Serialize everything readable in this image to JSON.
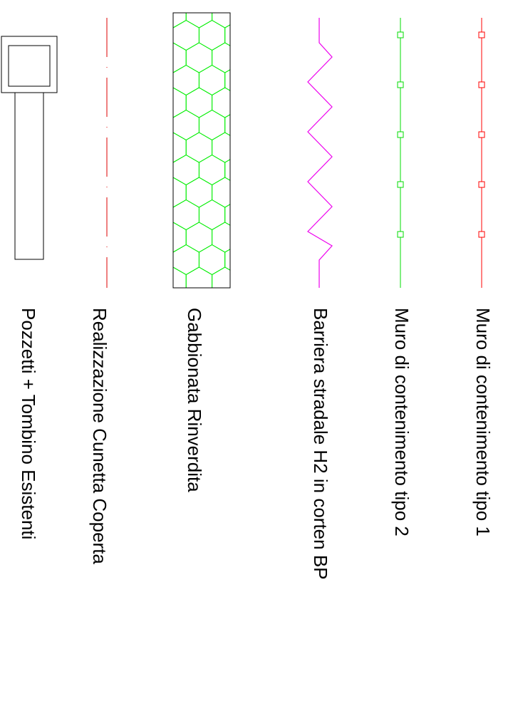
{
  "legend": {
    "items": [
      {
        "key": "muro_tipo_1",
        "label": "Muro di contenimento tipo 1",
        "symbol": "line-with-square-markers",
        "color": "#ff0000"
      },
      {
        "key": "muro_tipo_2",
        "label": "Muro di contenimento tipo 2",
        "symbol": "line-with-square-markers",
        "color": "#00dd00"
      },
      {
        "key": "barriera",
        "label": "Barriera stradale  H2 in corten BP",
        "symbol": "zigzag-line",
        "color": "#ee00ee"
      },
      {
        "key": "gabbionata",
        "label": "Gabbionata Rinverdita",
        "symbol": "hexagon-hatched-rectangle",
        "color": "#00ee00"
      },
      {
        "key": "cunetta",
        "label": "Realizzazione Cunetta Coperta",
        "symbol": "dash-dot-line",
        "color": "#dd0000"
      },
      {
        "key": "pozzetti",
        "label": "Pozzetti + Tombino Esistenti",
        "symbol": "manhole-and-pipe",
        "color": "#000000"
      }
    ]
  }
}
